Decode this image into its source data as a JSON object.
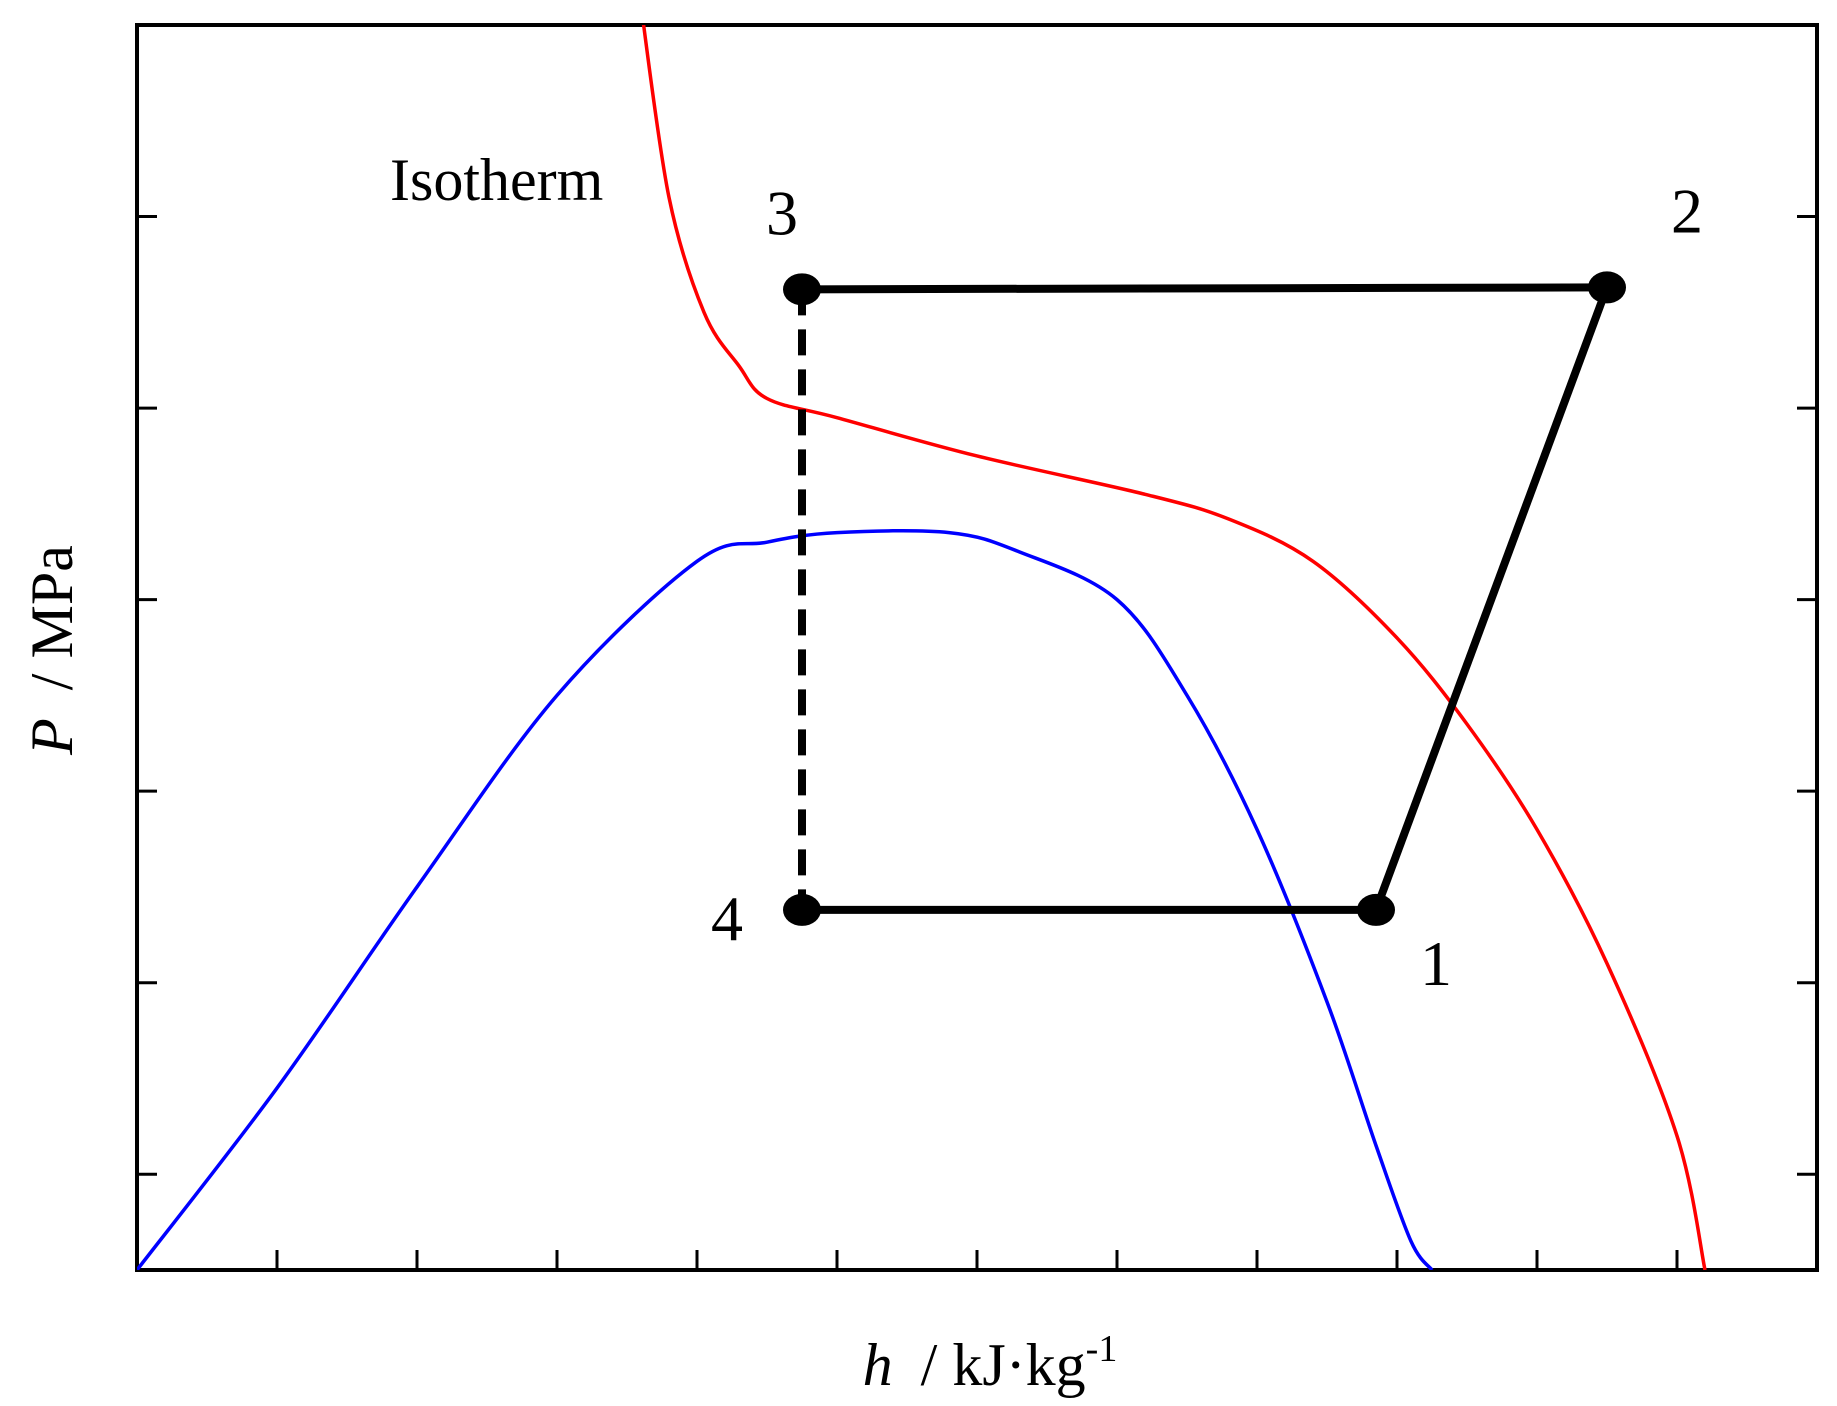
{
  "chart_data": {
    "type": "line",
    "title": "",
    "xlabel": {
      "symbol": "h",
      "unit": "/ kJ·kg",
      "unit_exp": "-1"
    },
    "ylabel": {
      "symbol": "P",
      "unit": "/ MPa"
    },
    "xlim": [
      0,
      12
    ],
    "ylim": [
      0,
      6.5
    ],
    "x_ticks": [
      1,
      2,
      3,
      4,
      5,
      6,
      7,
      8,
      9,
      10,
      11
    ],
    "y_ticks": [
      0.5,
      1.5,
      2.5,
      3.5,
      4.5,
      5.5
    ],
    "tick_labels_shown": false,
    "grid": false,
    "series": [
      {
        "role": "saturation-dome",
        "color": "#0000ff",
        "x": [
          0,
          1.0,
          2.0,
          3.0,
          4.0,
          4.5,
          5.0,
          5.8,
          6.3,
          7.0,
          7.5,
          8.0,
          8.5,
          8.85,
          9.1,
          9.25
        ],
        "y": [
          0,
          0.95,
          2.0,
          3.0,
          3.7,
          3.8,
          3.85,
          3.85,
          3.75,
          3.5,
          3.0,
          2.3,
          1.4,
          0.65,
          0.15,
          0
        ]
      },
      {
        "role": "isotherm",
        "color": "#ff0000",
        "x": [
          3.6,
          3.8,
          4.05,
          4.3,
          4.5,
          5.0,
          6.0,
          7.2,
          7.8,
          8.4,
          9.0,
          9.5,
          10.0,
          10.5,
          11.0,
          11.2
        ],
        "y": [
          6.6,
          5.6,
          5.0,
          4.72,
          4.55,
          4.45,
          4.25,
          4.05,
          3.92,
          3.7,
          3.3,
          2.85,
          2.3,
          1.6,
          0.7,
          0
        ]
      }
    ],
    "cycle": {
      "color": "#000000",
      "points": [
        {
          "label": "1",
          "x": 8.85,
          "y": 1.88
        },
        {
          "label": "2",
          "x": 10.5,
          "y": 5.13
        },
        {
          "label": "3",
          "x": 4.75,
          "y": 5.12
        },
        {
          "label": "4",
          "x": 4.75,
          "y": 1.88
        }
      ],
      "solid_segments": [
        [
          "1",
          "2"
        ],
        [
          "2",
          "3"
        ],
        [
          "4",
          "1"
        ]
      ],
      "dashed_segments": [
        [
          "3",
          "4"
        ]
      ]
    },
    "annotations": [
      {
        "text": "Isotherm",
        "x": 2.75,
        "y": 5.65
      }
    ]
  }
}
